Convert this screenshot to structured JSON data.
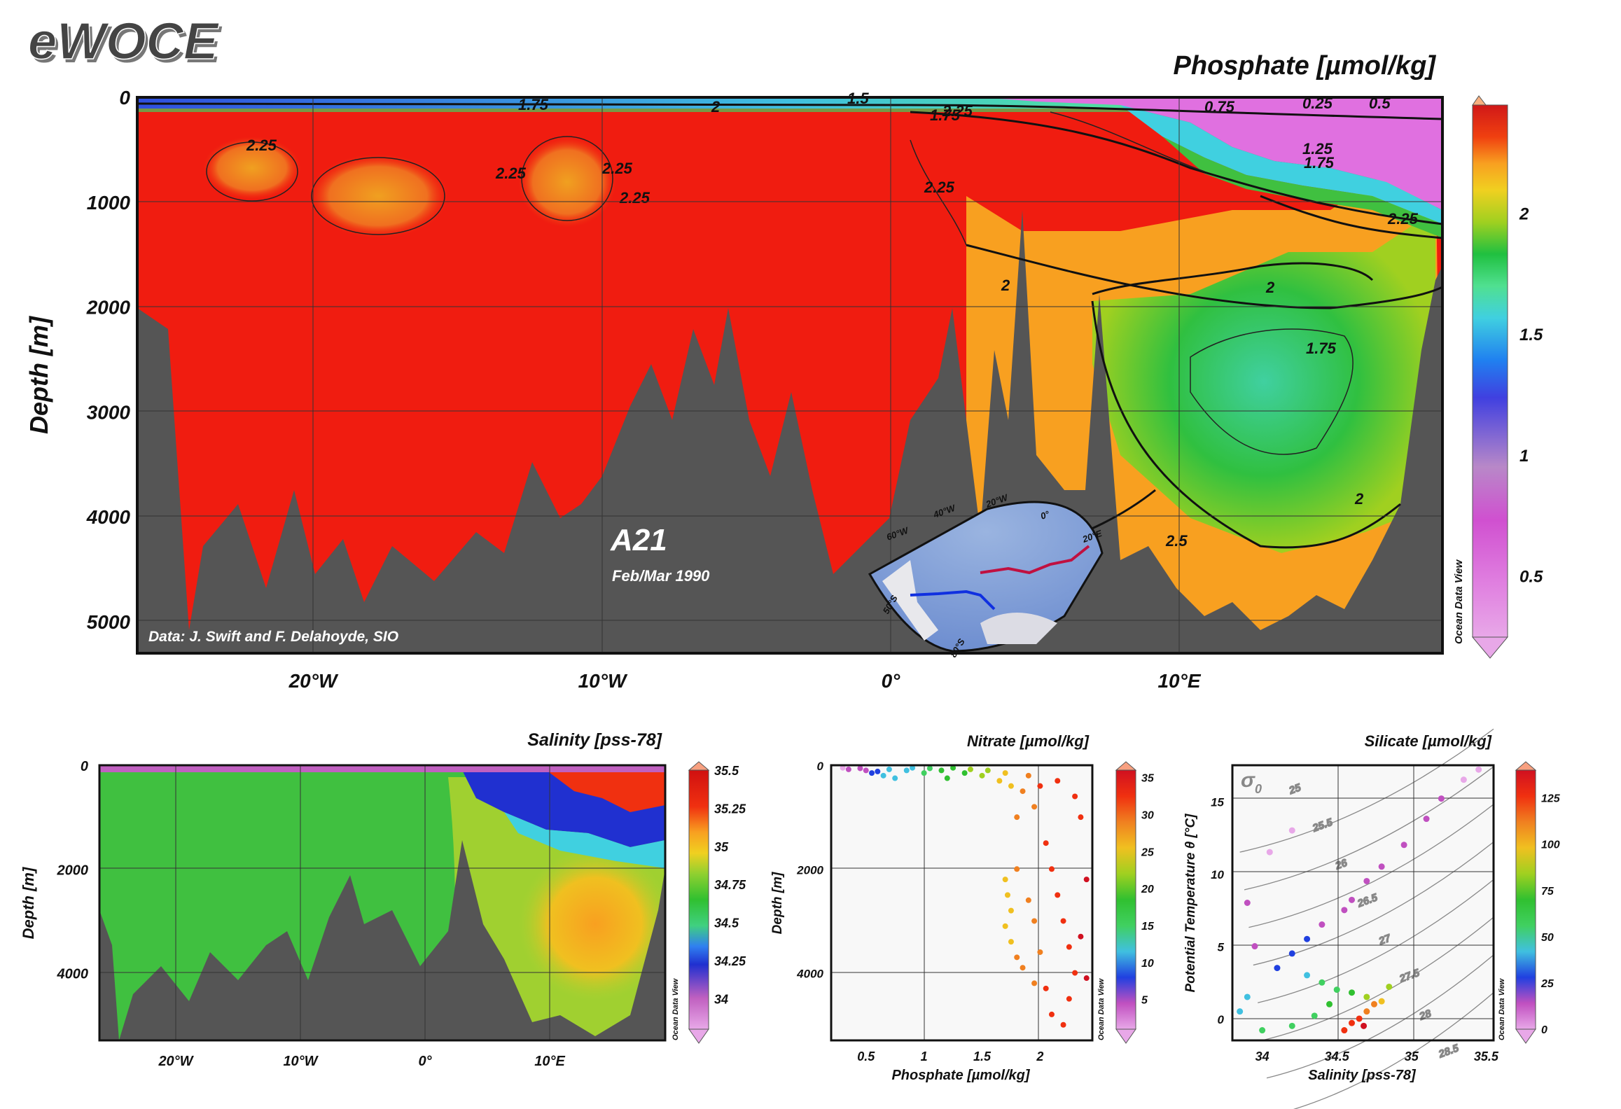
{
  "header": {
    "logo": "eWOCE"
  },
  "main": {
    "title": "Phosphate [µmol/kg]",
    "ylabel": "Depth [m]",
    "yticks": [
      "0",
      "1000",
      "2000",
      "3000",
      "4000",
      "5000"
    ],
    "xticks": [
      "20°W",
      "10°W",
      "0°",
      "10°E"
    ],
    "section_name": "A21",
    "section_date": "Feb/Mar 1990",
    "credit": "Data: J. Swift and F. Delahoyde, SIO",
    "contour_labels": [
      "1.75",
      "2",
      "1.5",
      "2.25",
      "0.75",
      "0.25",
      "0.5",
      "1.25",
      "2.25",
      "2.25",
      "2.25",
      "2.25",
      "2.25",
      "1.75",
      "2.25",
      "2",
      "1.75",
      "1.75",
      "2",
      "2",
      "2.5"
    ],
    "colorbar_ticks": [
      "2",
      "1.5",
      "1",
      "0.5"
    ],
    "watermark": "Ocean Data View",
    "map": {
      "lon_labels": [
        "60°W",
        "40°W",
        "20°W",
        "0°",
        "20°E"
      ],
      "lat_labels": [
        "50°S",
        "80°S"
      ]
    }
  },
  "salinity": {
    "title": "Salinity [pss-78]",
    "ylabel": "Depth [m]",
    "yticks": [
      "0",
      "2000",
      "4000"
    ],
    "xticks": [
      "20°W",
      "10°W",
      "0°",
      "10°E"
    ],
    "colorbar_ticks": [
      "35.5",
      "35.25",
      "35",
      "34.75",
      "34.5",
      "34.25",
      "34"
    ],
    "watermark": "Ocean Data View"
  },
  "nitrate": {
    "title": "Nitrate [µmol/kg]",
    "xlabel": "Phosphate [µmol/kg]",
    "ylabel": "Depth [m]",
    "xticks": [
      "0.5",
      "1",
      "1.5",
      "2"
    ],
    "yticks": [
      "0",
      "2000",
      "4000"
    ],
    "colorbar_ticks": [
      "35",
      "30",
      "25",
      "20",
      "15",
      "10",
      "5"
    ],
    "watermark": "Ocean Data View"
  },
  "silicate": {
    "title": "Silicate [µmol/kg]",
    "xlabel": "Salinity [pss-78]",
    "ylabel": "Potential Temperature θ [°C]",
    "xticks": [
      "34",
      "34.5",
      "35",
      "35.5"
    ],
    "yticks": [
      "15",
      "10",
      "5",
      "0"
    ],
    "sigma_symbol": "σ",
    "sigma_sub": "0",
    "isopycnal_labels": [
      "25",
      "25.5",
      "26",
      "26.5",
      "27",
      "27.5",
      "28",
      "28.5"
    ],
    "colorbar_ticks": [
      "125",
      "100",
      "75",
      "50",
      "25",
      "0"
    ],
    "watermark": "Ocean Data View"
  },
  "colors": {
    "phosphate_scale": [
      "#e8a8e8",
      "#e080e0",
      "#d050d0",
      "#b888c8",
      "#5050e0",
      "#2080f0",
      "#40d0e0",
      "#50e090",
      "#20c040",
      "#40c020",
      "#a0d020",
      "#f0d020",
      "#f8a020",
      "#f06010",
      "#f01010",
      "#e02020"
    ],
    "salinity_scale": [
      "#e8a8e8",
      "#c060c0",
      "#2030d0",
      "#3080f0",
      "#40d080",
      "#30c030",
      "#80d030",
      "#f0d020",
      "#f8a020",
      "#f03010",
      "#d01010"
    ],
    "nitrate_scale": [
      "#e8a8e8",
      "#c050c0",
      "#2040e0",
      "#40c0e0",
      "#40d060",
      "#30c030",
      "#a0d020",
      "#f0c020",
      "#f08020",
      "#f03010",
      "#d01020"
    ],
    "silicate_scale": [
      "#e8a8e8",
      "#c050c0",
      "#2040e0",
      "#40c0e0",
      "#40d060",
      "#30c030",
      "#a0d020",
      "#f0c020",
      "#f08020",
      "#f03010",
      "#d01020"
    ],
    "bathymetry": "#555555"
  },
  "chart_data": [
    {
      "type": "heatmap",
      "title": "Phosphate [µmol/kg]",
      "ylabel": "Depth [m]",
      "xticks": [
        "20°W",
        "10°W",
        "0°",
        "10°E"
      ],
      "ylim": [
        5300,
        0
      ],
      "colorbar": {
        "ticks": [
          0.5,
          1,
          1.5,
          2
        ],
        "range": [
          0.25,
          2.45
        ]
      },
      "contour_levels": [
        0.25,
        0.5,
        0.75,
        1.25,
        1.5,
        1.75,
        2,
        2.25
      ],
      "regions": [
        {
          "description": "western and central deep water",
          "value": 2.3
        },
        {
          "description": "eastern deep basin core",
          "value": 1.7
        },
        {
          "description": "eastern surface layer",
          "value": 0.5
        }
      ]
    },
    {
      "type": "heatmap",
      "title": "Salinity [pss-78]",
      "ylabel": "Depth [m]",
      "xticks": [
        "20°W",
        "10°W",
        "0°",
        "10°E"
      ],
      "ylim": [
        5300,
        0
      ],
      "colorbar": {
        "ticks": [
          34,
          34.25,
          34.5,
          34.75,
          35,
          35.25,
          35.5
        ],
        "range": [
          33.8,
          35.5
        ]
      },
      "regions": [
        {
          "description": "deep water west of 5°E",
          "value": 34.7
        },
        {
          "description": "deep water east of 10°E",
          "value": 34.85
        },
        {
          "description": "surface east of 10°E",
          "value": 35.3
        }
      ]
    },
    {
      "type": "scatter",
      "title": "Nitrate [µmol/kg]",
      "xlabel": "Phosphate [µmol/kg]",
      "ylabel": "Depth [m]",
      "xlim": [
        0.2,
        2.45
      ],
      "ylim": [
        5300,
        0
      ],
      "color_variable": "Nitrate [µmol/kg]",
      "colorbar_range": [
        1,
        36
      ],
      "points": [
        {
          "x": 0.3,
          "y": 50,
          "c": 2
        },
        {
          "x": 0.35,
          "y": 80,
          "c": 3
        },
        {
          "x": 0.45,
          "y": 60,
          "c": 4
        },
        {
          "x": 0.5,
          "y": 100,
          "c": 6
        },
        {
          "x": 0.55,
          "y": 150,
          "c": 8
        },
        {
          "x": 0.6,
          "y": 120,
          "c": 9
        },
        {
          "x": 0.65,
          "y": 200,
          "c": 10
        },
        {
          "x": 0.7,
          "y": 80,
          "c": 10
        },
        {
          "x": 0.75,
          "y": 250,
          "c": 11
        },
        {
          "x": 0.85,
          "y": 100,
          "c": 13
        },
        {
          "x": 0.9,
          "y": 50,
          "c": 13
        },
        {
          "x": 1.0,
          "y": 150,
          "c": 15
        },
        {
          "x": 1.05,
          "y": 60,
          "c": 16
        },
        {
          "x": 1.15,
          "y": 100,
          "c": 17
        },
        {
          "x": 1.2,
          "y": 250,
          "c": 18
        },
        {
          "x": 1.25,
          "y": 50,
          "c": 18
        },
        {
          "x": 1.35,
          "y": 150,
          "c": 20
        },
        {
          "x": 1.4,
          "y": 80,
          "c": 21
        },
        {
          "x": 1.5,
          "y": 200,
          "c": 22
        },
        {
          "x": 1.55,
          "y": 100,
          "c": 23
        },
        {
          "x": 1.65,
          "y": 300,
          "c": 25
        },
        {
          "x": 1.7,
          "y": 150,
          "c": 26
        },
        {
          "x": 1.75,
          "y": 400,
          "c": 27
        },
        {
          "x": 1.8,
          "y": 1000,
          "c": 28
        },
        {
          "x": 1.85,
          "y": 500,
          "c": 29
        },
        {
          "x": 1.9,
          "y": 200,
          "c": 29
        },
        {
          "x": 1.95,
          "y": 800,
          "c": 30
        },
        {
          "x": 2.0,
          "y": 400,
          "c": 31
        },
        {
          "x": 1.7,
          "y": 2200,
          "c": 27
        },
        {
          "x": 1.72,
          "y": 2500,
          "c": 27
        },
        {
          "x": 1.75,
          "y": 2800,
          "c": 27
        },
        {
          "x": 1.7,
          "y": 3100,
          "c": 26
        },
        {
          "x": 1.75,
          "y": 3400,
          "c": 27
        },
        {
          "x": 1.8,
          "y": 3700,
          "c": 28
        },
        {
          "x": 1.85,
          "y": 3900,
          "c": 28
        },
        {
          "x": 1.8,
          "y": 2000,
          "c": 28
        },
        {
          "x": 1.9,
          "y": 2600,
          "c": 29
        },
        {
          "x": 1.95,
          "y": 3000,
          "c": 30
        },
        {
          "x": 2.0,
          "y": 3600,
          "c": 30
        },
        {
          "x": 1.95,
          "y": 4200,
          "c": 30
        },
        {
          "x": 2.05,
          "y": 1500,
          "c": 32
        },
        {
          "x": 2.1,
          "y": 2000,
          "c": 32
        },
        {
          "x": 2.15,
          "y": 2500,
          "c": 33
        },
        {
          "x": 2.2,
          "y": 3000,
          "c": 33
        },
        {
          "x": 2.25,
          "y": 3500,
          "c": 34
        },
        {
          "x": 2.3,
          "y": 4000,
          "c": 34
        },
        {
          "x": 2.25,
          "y": 4500,
          "c": 34
        },
        {
          "x": 2.2,
          "y": 5000,
          "c": 34
        },
        {
          "x": 2.35,
          "y": 1000,
          "c": 34
        },
        {
          "x": 2.3,
          "y": 600,
          "c": 33
        },
        {
          "x": 2.15,
          "y": 300,
          "c": 32
        },
        {
          "x": 2.4,
          "y": 2200,
          "c": 35
        },
        {
          "x": 2.1,
          "y": 4800,
          "c": 33
        },
        {
          "x": 2.05,
          "y": 4300,
          "c": 32
        },
        {
          "x": 2.35,
          "y": 3300,
          "c": 35
        },
        {
          "x": 2.4,
          "y": 4100,
          "c": 35
        }
      ]
    },
    {
      "type": "scatter",
      "title": "Silicate [µmol/kg]",
      "xlabel": "Salinity [pss-78]",
      "ylabel": "Potential Temperature θ [°C]",
      "xlim": [
        33.8,
        35.55
      ],
      "ylim": [
        -1.5,
        17.5
      ],
      "color_variable": "Silicate [µmol/kg]",
      "colorbar_range": [
        0,
        140
      ],
      "isopycnals_sigma0": [
        25,
        25.5,
        26,
        26.5,
        27,
        27.5,
        28,
        28.5
      ],
      "points": [
        {
          "x": 35.45,
          "y": 17.2,
          "c": 5
        },
        {
          "x": 35.35,
          "y": 16.5,
          "c": 6
        },
        {
          "x": 35.2,
          "y": 15.2,
          "c": 8
        },
        {
          "x": 35.1,
          "y": 13.8,
          "c": 8
        },
        {
          "x": 34.95,
          "y": 12.0,
          "c": 10
        },
        {
          "x": 34.8,
          "y": 10.5,
          "c": 10
        },
        {
          "x": 34.7,
          "y": 9.5,
          "c": 12
        },
        {
          "x": 34.6,
          "y": 8.2,
          "c": 15
        },
        {
          "x": 34.55,
          "y": 7.5,
          "c": 18
        },
        {
          "x": 34.4,
          "y": 6.5,
          "c": 20
        },
        {
          "x": 34.3,
          "y": 5.5,
          "c": 22
        },
        {
          "x": 34.2,
          "y": 4.5,
          "c": 25
        },
        {
          "x": 34.05,
          "y": 11.5,
          "c": 6
        },
        {
          "x": 34.2,
          "y": 13.0,
          "c": 5
        },
        {
          "x": 33.9,
          "y": 8.0,
          "c": 8
        },
        {
          "x": 33.95,
          "y": 5.0,
          "c": 12
        },
        {
          "x": 34.1,
          "y": 3.5,
          "c": 30
        },
        {
          "x": 34.3,
          "y": 3.0,
          "c": 45
        },
        {
          "x": 34.4,
          "y": 2.5,
          "c": 55
        },
        {
          "x": 34.5,
          "y": 2.0,
          "c": 60
        },
        {
          "x": 34.6,
          "y": 1.8,
          "c": 75
        },
        {
          "x": 34.7,
          "y": 1.5,
          "c": 90
        },
        {
          "x": 34.75,
          "y": 1.0,
          "c": 105
        },
        {
          "x": 34.7,
          "y": 0.5,
          "c": 115
        },
        {
          "x": 34.65,
          "y": 0.0,
          "c": 125
        },
        {
          "x": 34.6,
          "y": -0.3,
          "c": 130
        },
        {
          "x": 34.68,
          "y": -0.5,
          "c": 135
        },
        {
          "x": 34.55,
          "y": -0.8,
          "c": 128
        },
        {
          "x": 34.85,
          "y": 2.2,
          "c": 80
        },
        {
          "x": 34.8,
          "y": 1.2,
          "c": 95
        },
        {
          "x": 34.45,
          "y": 1.0,
          "c": 65
        },
        {
          "x": 34.35,
          "y": 0.2,
          "c": 60
        },
        {
          "x": 34.2,
          "y": -0.5,
          "c": 55
        },
        {
          "x": 33.9,
          "y": 1.5,
          "c": 35
        },
        {
          "x": 33.85,
          "y": 0.5,
          "c": 40
        },
        {
          "x": 34.0,
          "y": -0.8,
          "c": 50
        }
      ]
    }
  ]
}
